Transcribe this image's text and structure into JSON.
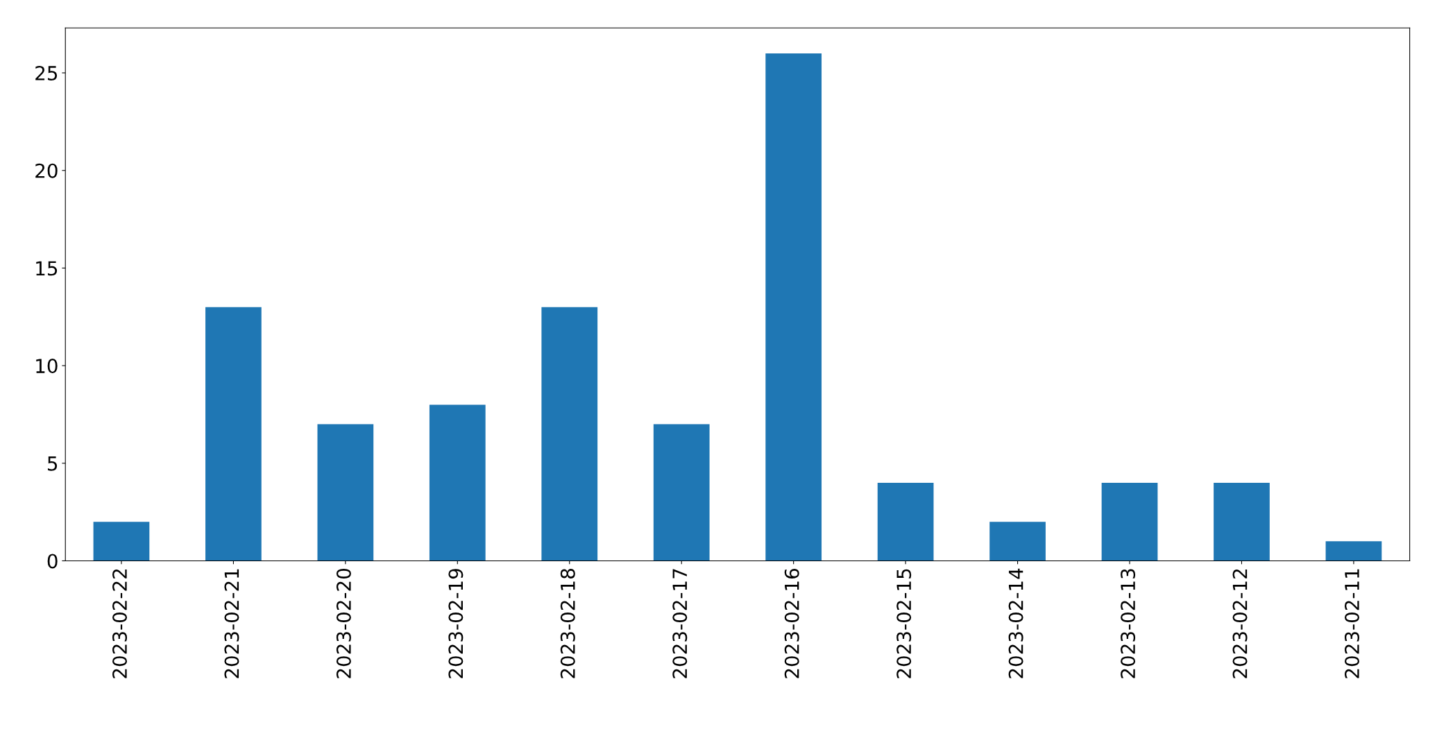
{
  "chart_data": {
    "type": "bar",
    "categories": [
      "2023-02-22",
      "2023-02-21",
      "2023-02-20",
      "2023-02-19",
      "2023-02-18",
      "2023-02-17",
      "2023-02-16",
      "2023-02-15",
      "2023-02-14",
      "2023-02-13",
      "2023-02-12",
      "2023-02-11"
    ],
    "values": [
      2,
      13,
      7,
      8,
      13,
      7,
      26,
      4,
      2,
      4,
      4,
      1
    ],
    "color": "#1f77b4",
    "ylim": [
      0,
      27.3
    ],
    "yticks": [
      0,
      5,
      10,
      15,
      20,
      25
    ],
    "grid": false,
    "legend": false
  }
}
